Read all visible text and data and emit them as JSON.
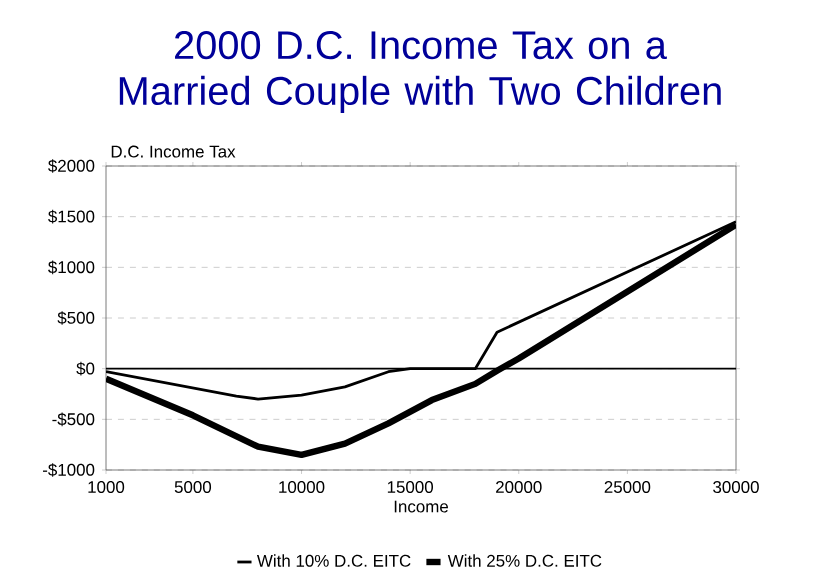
{
  "chart_data": {
    "type": "line",
    "title": "2000 D.C. Income Tax on a Married Couple with Two Children",
    "xlabel": "Income",
    "ylabel": "D.C. Income Tax",
    "xlim": [
      1000,
      30000
    ],
    "xticks": [
      1000,
      5000,
      10000,
      15000,
      20000,
      25000,
      30000
    ],
    "ylim": [
      -1000,
      2000
    ],
    "yticks": [
      {
        "value": -1000,
        "label": "-$1000"
      },
      {
        "value": -500,
        "label": "-$500"
      },
      {
        "value": 0,
        "label": "$0"
      },
      {
        "value": 500,
        "label": "$500"
      },
      {
        "value": 1000,
        "label": "$1000"
      },
      {
        "value": 1500,
        "label": "$1500"
      },
      {
        "value": 2000,
        "label": "$2000"
      }
    ],
    "grid": "y",
    "legend": "bottom",
    "line_style": "solid",
    "ref_lines": [
      {
        "axis": "y",
        "value": 0,
        "color": "#000000"
      }
    ],
    "series": [
      {
        "name": "With 10% D.C. EITC",
        "color": "#000000",
        "x": [
          1000,
          7000,
          8000,
          10000,
          12000,
          14000,
          15000,
          18000,
          19000,
          30000
        ],
        "values": [
          -30,
          -270,
          -300,
          -260,
          -180,
          -30,
          0,
          0,
          360,
          1450
        ]
      },
      {
        "name": "With 25% D.C. EITC",
        "color": "#000000",
        "x": [
          1000,
          5000,
          8000,
          10000,
          12000,
          14000,
          16000,
          18000,
          19000,
          20000,
          30000
        ],
        "values": [
          -100,
          -460,
          -770,
          -850,
          -740,
          -540,
          -310,
          -150,
          -20,
          100,
          1420
        ]
      }
    ]
  }
}
